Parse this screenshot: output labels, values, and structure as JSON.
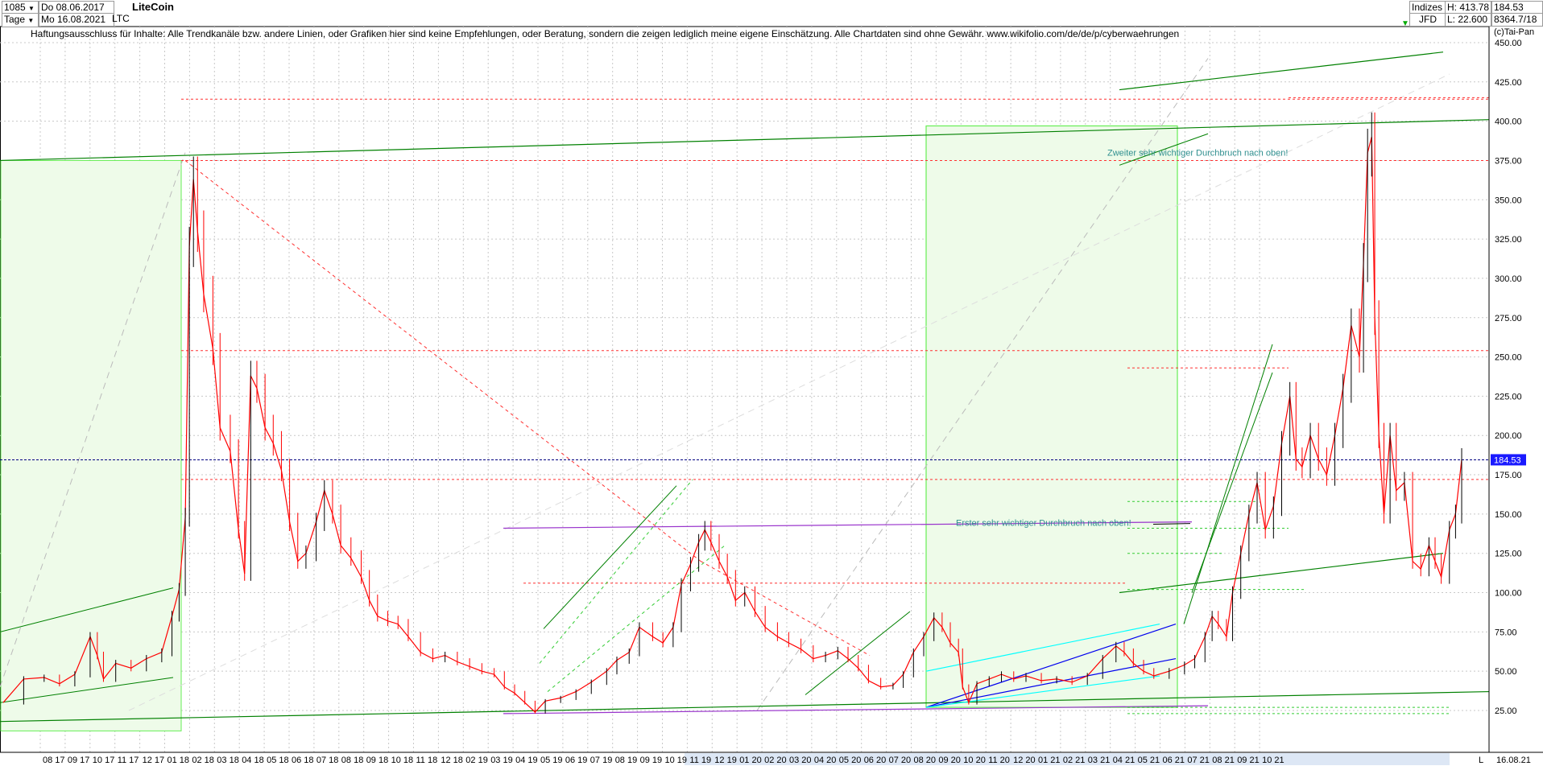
{
  "header": {
    "count_value": "1085",
    "period_value": "Tage",
    "start_date": "Do 08.06.2017",
    "end_date": "Mo 16.08.2021",
    "symbol": "LTC",
    "title": "LiteCoin",
    "index_label": "Indizes",
    "source_label": "JFD",
    "high_label": "H: 413.78",
    "low_label": "L: 22.600",
    "value_a": "184.53",
    "value_b": "8364.7/18",
    "copyright": "(c)Tai-Pan"
  },
  "disclaimer": "Haftungsausschluss für Inhalte: Alle Trendkanäle bzw. andere Linien, oder Grafiken hier sind keine Empfehlungen, oder Beratung, sondern die zeigen lediglich meine eigene Einschätzung. Alle Chartdaten sind ohne Gewähr.  www.wikifolio.com/de/de/p/cyberwaehrungen",
  "annotations": {
    "first_breakout": "Erster sehr wichtiger Durchbruch nach oben!",
    "second_breakout": "Zweiter sehr wichtiger Durchbruch nach oben!"
  },
  "footer": {
    "end_date": "16.08.21",
    "scale_mode": "L"
  },
  "colors": {
    "candle_up": "#000000",
    "candle_down": "#ff0000",
    "trend_green": "#008000",
    "zone_fill": "#eefbe9",
    "zone_border": "#66ee55",
    "resistance_red": "#ff3030",
    "purple": "#9933cc",
    "blue": "#0000ee",
    "cyan": "#00ffff",
    "price_line": "#000080",
    "price_badge": "#1a1aff"
  },
  "chart_data": {
    "type": "line",
    "title": "LiteCoin",
    "ylim": [
      12.5,
      455
    ],
    "y_scale": "linear",
    "grid": true,
    "yticks": [
      "25.00",
      "50.00",
      "75.00",
      "100.00",
      "125.00",
      "150.00",
      "175.00",
      "200.00",
      "225.00",
      "250.00",
      "275.00",
      "300.00",
      "325.00",
      "350.00",
      "375.00",
      "400.00",
      "425.00",
      "450.00"
    ],
    "xtick_labels": [
      "08 17",
      "09 17",
      "10 17",
      "11 17",
      "12 17",
      "01 18",
      "02 18",
      "03 18",
      "04 18",
      "05 18",
      "06 18",
      "07 18",
      "08 18",
      "09 18",
      "10 18",
      "11 18",
      "12 18",
      "02 19",
      "03 19",
      "04 19",
      "05 19",
      "06 19",
      "07 19",
      "08 19",
      "09 19",
      "10 19",
      "11 19",
      "12 19",
      "01 20",
      "02 20",
      "03 20",
      "04 20",
      "05 20",
      "06 20",
      "07 20",
      "08 20",
      "09 20",
      "10 20",
      "11 20",
      "12 20",
      "01 21",
      "02 21",
      "03 21",
      "04 21",
      "05 21",
      "06 21",
      "07 21",
      "08 21",
      "09 21",
      "10 21"
    ],
    "current_price": "184.53",
    "series": [
      {
        "values": [
          [
            0,
            30
          ],
          [
            20,
            45
          ],
          [
            40,
            46
          ],
          [
            55,
            42
          ],
          [
            70,
            48
          ],
          [
            85,
            72
          ],
          [
            92,
            60
          ],
          [
            98,
            45
          ],
          [
            110,
            55
          ],
          [
            125,
            52
          ],
          [
            140,
            58
          ],
          [
            155,
            62
          ],
          [
            165,
            85
          ],
          [
            172,
            102
          ],
          [
            178,
            148
          ],
          [
            182,
            320
          ],
          [
            186,
            363
          ],
          [
            190,
            330
          ],
          [
            196,
            290
          ],
          [
            205,
            255
          ],
          [
            212,
            205
          ],
          [
            222,
            190
          ],
          [
            230,
            140
          ],
          [
            236,
            112
          ],
          [
            242,
            238
          ],
          [
            248,
            230
          ],
          [
            256,
            205
          ],
          [
            264,
            195
          ],
          [
            272,
            178
          ],
          [
            280,
            145
          ],
          [
            288,
            120
          ],
          [
            296,
            125
          ],
          [
            306,
            145
          ],
          [
            314,
            165
          ],
          [
            322,
            150
          ],
          [
            330,
            130
          ],
          [
            340,
            122
          ],
          [
            350,
            110
          ],
          [
            358,
            95
          ],
          [
            366,
            85
          ],
          [
            376,
            82
          ],
          [
            386,
            80
          ],
          [
            396,
            72
          ],
          [
            408,
            62
          ],
          [
            420,
            58
          ],
          [
            432,
            60
          ],
          [
            444,
            56
          ],
          [
            456,
            53
          ],
          [
            468,
            50
          ],
          [
            480,
            48
          ],
          [
            490,
            40
          ],
          [
            500,
            36
          ],
          [
            510,
            30
          ],
          [
            520,
            24
          ],
          [
            530,
            31
          ],
          [
            545,
            33
          ],
          [
            560,
            37
          ],
          [
            575,
            43
          ],
          [
            590,
            50
          ],
          [
            600,
            57
          ],
          [
            612,
            62
          ],
          [
            622,
            78
          ],
          [
            635,
            72
          ],
          [
            645,
            68
          ],
          [
            655,
            78
          ],
          [
            663,
            105
          ],
          [
            672,
            118
          ],
          [
            680,
            132
          ],
          [
            686,
            140
          ],
          [
            692,
            132
          ],
          [
            700,
            120
          ],
          [
            708,
            110
          ],
          [
            716,
            95
          ],
          [
            725,
            100
          ],
          [
            735,
            88
          ],
          [
            745,
            78
          ],
          [
            757,
            72
          ],
          [
            768,
            68
          ],
          [
            780,
            64
          ],
          [
            792,
            58
          ],
          [
            804,
            60
          ],
          [
            816,
            63
          ],
          [
            826,
            58
          ],
          [
            836,
            52
          ],
          [
            846,
            44
          ],
          [
            858,
            40
          ],
          [
            870,
            41
          ],
          [
            880,
            48
          ],
          [
            890,
            62
          ],
          [
            900,
            72
          ],
          [
            910,
            84
          ],
          [
            918,
            78
          ],
          [
            926,
            68
          ],
          [
            934,
            62
          ],
          [
            938,
            40
          ],
          [
            944,
            30
          ],
          [
            952,
            42
          ],
          [
            964,
            45
          ],
          [
            976,
            48
          ],
          [
            988,
            45
          ],
          [
            1000,
            47
          ],
          [
            1015,
            44
          ],
          [
            1030,
            45
          ],
          [
            1045,
            43
          ],
          [
            1060,
            47
          ],
          [
            1075,
            58
          ],
          [
            1088,
            66
          ],
          [
            1096,
            62
          ],
          [
            1105,
            55
          ],
          [
            1115,
            50
          ],
          [
            1125,
            47
          ],
          [
            1140,
            50
          ],
          [
            1155,
            54
          ],
          [
            1165,
            58
          ],
          [
            1175,
            72
          ],
          [
            1182,
            85
          ],
          [
            1188,
            80
          ],
          [
            1196,
            72
          ],
          [
            1202,
            100
          ],
          [
            1210,
            125
          ],
          [
            1218,
            150
          ],
          [
            1226,
            170
          ],
          [
            1234,
            140
          ],
          [
            1242,
            155
          ],
          [
            1250,
            195
          ],
          [
            1258,
            225
          ],
          [
            1264,
            185
          ],
          [
            1270,
            180
          ],
          [
            1278,
            200
          ],
          [
            1286,
            185
          ],
          [
            1294,
            175
          ],
          [
            1302,
            200
          ],
          [
            1310,
            230
          ],
          [
            1318,
            270
          ],
          [
            1326,
            250
          ],
          [
            1330,
            310
          ],
          [
            1334,
            380
          ],
          [
            1338,
            390
          ],
          [
            1341,
            275
          ],
          [
            1345,
            200
          ],
          [
            1350,
            150
          ],
          [
            1356,
            200
          ],
          [
            1362,
            165
          ],
          [
            1370,
            170
          ],
          [
            1378,
            120
          ],
          [
            1386,
            115
          ],
          [
            1394,
            130
          ],
          [
            1400,
            120
          ],
          [
            1406,
            110
          ],
          [
            1414,
            140
          ],
          [
            1420,
            150
          ],
          [
            1426,
            184.53
          ]
        ]
      }
    ],
    "level_lines": [
      25,
      103,
      141,
      172,
      243,
      254,
      375,
      414
    ],
    "annotations": [
      "Erster sehr wichtiger Durchbruch nach oben!",
      "Zweiter sehr wichtiger Durchbruch nach oben!"
    ]
  }
}
